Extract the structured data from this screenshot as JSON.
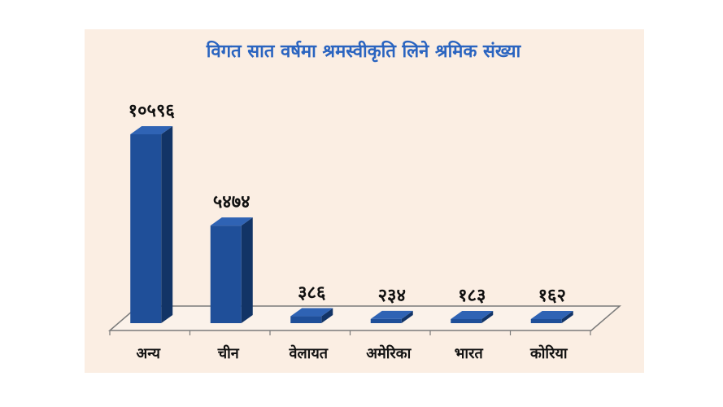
{
  "chart_data": {
    "type": "bar",
    "title": "विगत सात वर्षमा श्रमस्वीकृति लिने श्रमिक संख्या",
    "categories": [
      "अन्य",
      "चीन",
      "वेलायत",
      "अमेरिका",
      "भारत",
      "कोरिया"
    ],
    "values": [
      10596,
      5474,
      386,
      234,
      183,
      162
    ],
    "value_labels": [
      "१०५९६",
      "५४७४",
      "३८६",
      "२३४",
      "१८३",
      "१६२"
    ],
    "ylim": [
      0,
      10596
    ],
    "grid": false,
    "legend": "none"
  },
  "colors": {
    "bar_front": "#1f4f99",
    "bar_side": "#123466",
    "bar_top": "#2f63b4",
    "floor": "#fbf2ea",
    "title": "#2a64c0",
    "panel": "#fbeee3"
  }
}
